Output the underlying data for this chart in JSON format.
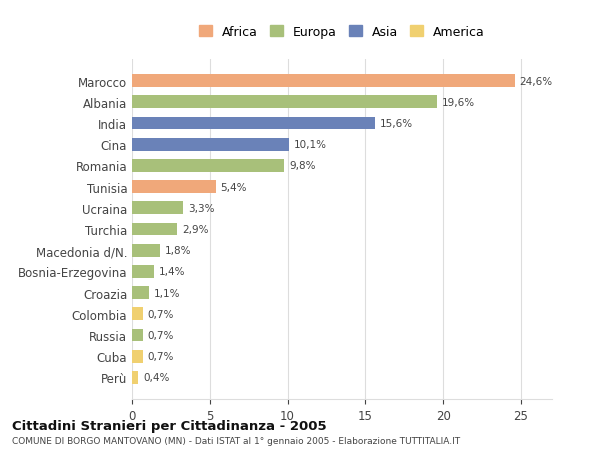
{
  "countries": [
    "Marocco",
    "Albania",
    "India",
    "Cina",
    "Romania",
    "Tunisia",
    "Ucraina",
    "Turchia",
    "Macedonia d/N.",
    "Bosnia-Erzegovina",
    "Croazia",
    "Colombia",
    "Russia",
    "Cuba",
    "Perù"
  ],
  "values": [
    24.6,
    19.6,
    15.6,
    10.1,
    9.8,
    5.4,
    3.3,
    2.9,
    1.8,
    1.4,
    1.1,
    0.7,
    0.7,
    0.7,
    0.4
  ],
  "labels": [
    "24,6%",
    "19,6%",
    "15,6%",
    "10,1%",
    "9,8%",
    "5,4%",
    "3,3%",
    "2,9%",
    "1,8%",
    "1,4%",
    "1,1%",
    "0,7%",
    "0,7%",
    "0,7%",
    "0,4%"
  ],
  "continents": [
    "Africa",
    "Europa",
    "Asia",
    "Asia",
    "Europa",
    "Africa",
    "Europa",
    "Europa",
    "Europa",
    "Europa",
    "Europa",
    "America",
    "Europa",
    "America",
    "America"
  ],
  "colors": {
    "Africa": "#F0A87A",
    "Europa": "#A8C07A",
    "Asia": "#6A82B8",
    "America": "#F0D070"
  },
  "legend_order": [
    "Africa",
    "Europa",
    "Asia",
    "America"
  ],
  "title": "Cittadini Stranieri per Cittadinanza - 2005",
  "subtitle": "COMUNE DI BORGO MANTOVANO (MN) - Dati ISTAT al 1° gennaio 2005 - Elaborazione TUTTITALIA.IT",
  "xlim": [
    0,
    27
  ],
  "xticks": [
    0,
    5,
    10,
    15,
    20,
    25
  ],
  "background_color": "#ffffff",
  "grid_color": "#dddddd"
}
